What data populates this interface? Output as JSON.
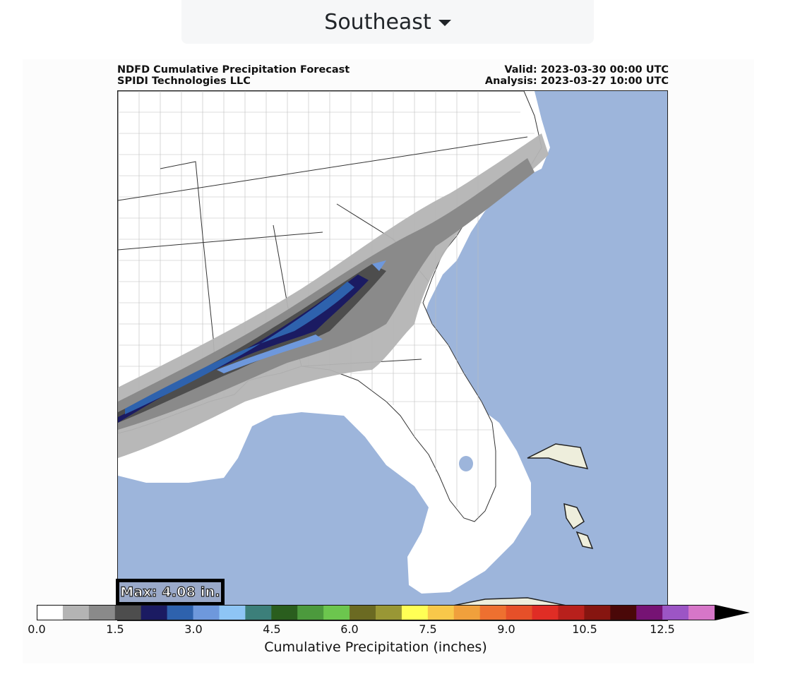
{
  "region_select": {
    "selected": "Southeast"
  },
  "figure": {
    "title_line1": "NDFD Cumulative Precipitation Forecast",
    "title_line2": "SPIDI Technologies LLC",
    "valid": "Valid: 2023-03-30 00:00 UTC",
    "analysis": "Analysis: 2023-03-27 10:00 UTC",
    "max_label": "Max: 4.08 in."
  },
  "colorbar": {
    "title": "Cumulative Precipitation (inches)",
    "tick_labels": [
      "0.0",
      "1.5",
      "3.0",
      "4.5",
      "6.0",
      "7.5",
      "9.0",
      "10.5",
      "12.5"
    ],
    "colors": [
      "#ffffff",
      "#b4b4b4",
      "#8a8a8a",
      "#4d4d4d",
      "#1b1b62",
      "#2e62ad",
      "#6e98dc",
      "#8ec5f5",
      "#3c7f7a",
      "#2a5e1e",
      "#4c9a3d",
      "#6cc64e",
      "#6b6a22",
      "#999735",
      "#ffff55",
      "#f8c84a",
      "#f0a03c",
      "#ee7030",
      "#e65029",
      "#e02d25",
      "#b8201c",
      "#861510",
      "#4a0808",
      "#761374",
      "#9c55c5",
      "#d676c8"
    ],
    "extend_color": "#000000"
  },
  "map": {
    "ocean_color": "#9db5db",
    "land_color": "#ffffff",
    "island_color": "#eeeedc"
  }
}
